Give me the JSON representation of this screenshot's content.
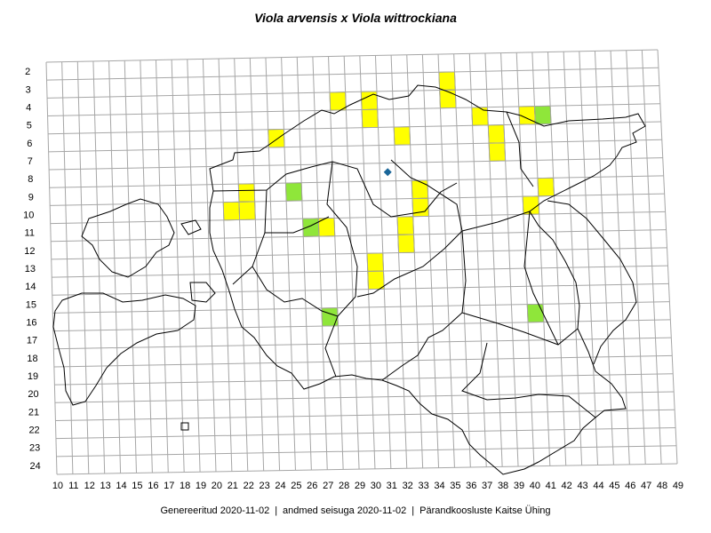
{
  "title": "Viola arvensis x Viola wittrockiana",
  "footer": {
    "generated": "Genereeritud 2020-11-02",
    "data_state": "andmed seisuga 2020-11-02",
    "organization": "Pärandkoosluste Kaitse Ühing",
    "separator": "|"
  },
  "grid": {
    "x_labels": [
      "10",
      "11",
      "12",
      "13",
      "14",
      "15",
      "16",
      "17",
      "18",
      "19",
      "20",
      "21",
      "22",
      "23",
      "24",
      "25",
      "26",
      "27",
      "28",
      "29",
      "30",
      "31",
      "32",
      "33",
      "34",
      "35",
      "36",
      "37",
      "38",
      "39",
      "40",
      "41",
      "42",
      "43",
      "44",
      "45",
      "46",
      "47",
      "48",
      "49"
    ],
    "y_labels": [
      "2",
      "3",
      "4",
      "5",
      "6",
      "7",
      "8",
      "9",
      "10",
      "11",
      "12",
      "13",
      "14",
      "15",
      "16",
      "17",
      "18",
      "19",
      "20",
      "21",
      "22",
      "23",
      "24"
    ]
  },
  "colors": {
    "yellow": "#ffff00",
    "green": "#8fe63a",
    "diamond": "#1a6699",
    "grid": "#a6a6a6",
    "border": "#000000"
  },
  "occurrences": [
    {
      "x": 22,
      "y": 9,
      "color": "yellow"
    },
    {
      "x": 22,
      "y": 10,
      "color": "yellow"
    },
    {
      "x": 21,
      "y": 10,
      "color": "yellow"
    },
    {
      "x": 24,
      "y": 6,
      "color": "yellow"
    },
    {
      "x": 25,
      "y": 9,
      "color": "green"
    },
    {
      "x": 26,
      "y": 11,
      "color": "green"
    },
    {
      "x": 27,
      "y": 11,
      "color": "yellow"
    },
    {
      "x": 27,
      "y": 16,
      "color": "green"
    },
    {
      "x": 28,
      "y": 4,
      "color": "yellow"
    },
    {
      "x": 30,
      "y": 4,
      "color": "yellow"
    },
    {
      "x": 30,
      "y": 5,
      "color": "yellow"
    },
    {
      "x": 30,
      "y": 13,
      "color": "yellow"
    },
    {
      "x": 30,
      "y": 14,
      "color": "yellow"
    },
    {
      "x": 32,
      "y": 6,
      "color": "yellow"
    },
    {
      "x": 33,
      "y": 9,
      "color": "yellow"
    },
    {
      "x": 33,
      "y": 10,
      "color": "yellow"
    },
    {
      "x": 32,
      "y": 11,
      "color": "yellow"
    },
    {
      "x": 32,
      "y": 12,
      "color": "yellow"
    },
    {
      "x": 35,
      "y": 3,
      "color": "yellow"
    },
    {
      "x": 35,
      "y": 4,
      "color": "yellow"
    },
    {
      "x": 37,
      "y": 5,
      "color": "yellow"
    },
    {
      "x": 38,
      "y": 6,
      "color": "yellow"
    },
    {
      "x": 38,
      "y": 7,
      "color": "yellow"
    },
    {
      "x": 40,
      "y": 5,
      "color": "yellow"
    },
    {
      "x": 41,
      "y": 5,
      "color": "green"
    },
    {
      "x": 40,
      "y": 10,
      "color": "yellow"
    },
    {
      "x": 41,
      "y": 9,
      "color": "yellow"
    },
    {
      "x": 40,
      "y": 16,
      "color": "green"
    }
  ],
  "point_markers": [
    {
      "x": 31,
      "y": 8,
      "color": "diamond",
      "shape": "diamond"
    }
  ]
}
